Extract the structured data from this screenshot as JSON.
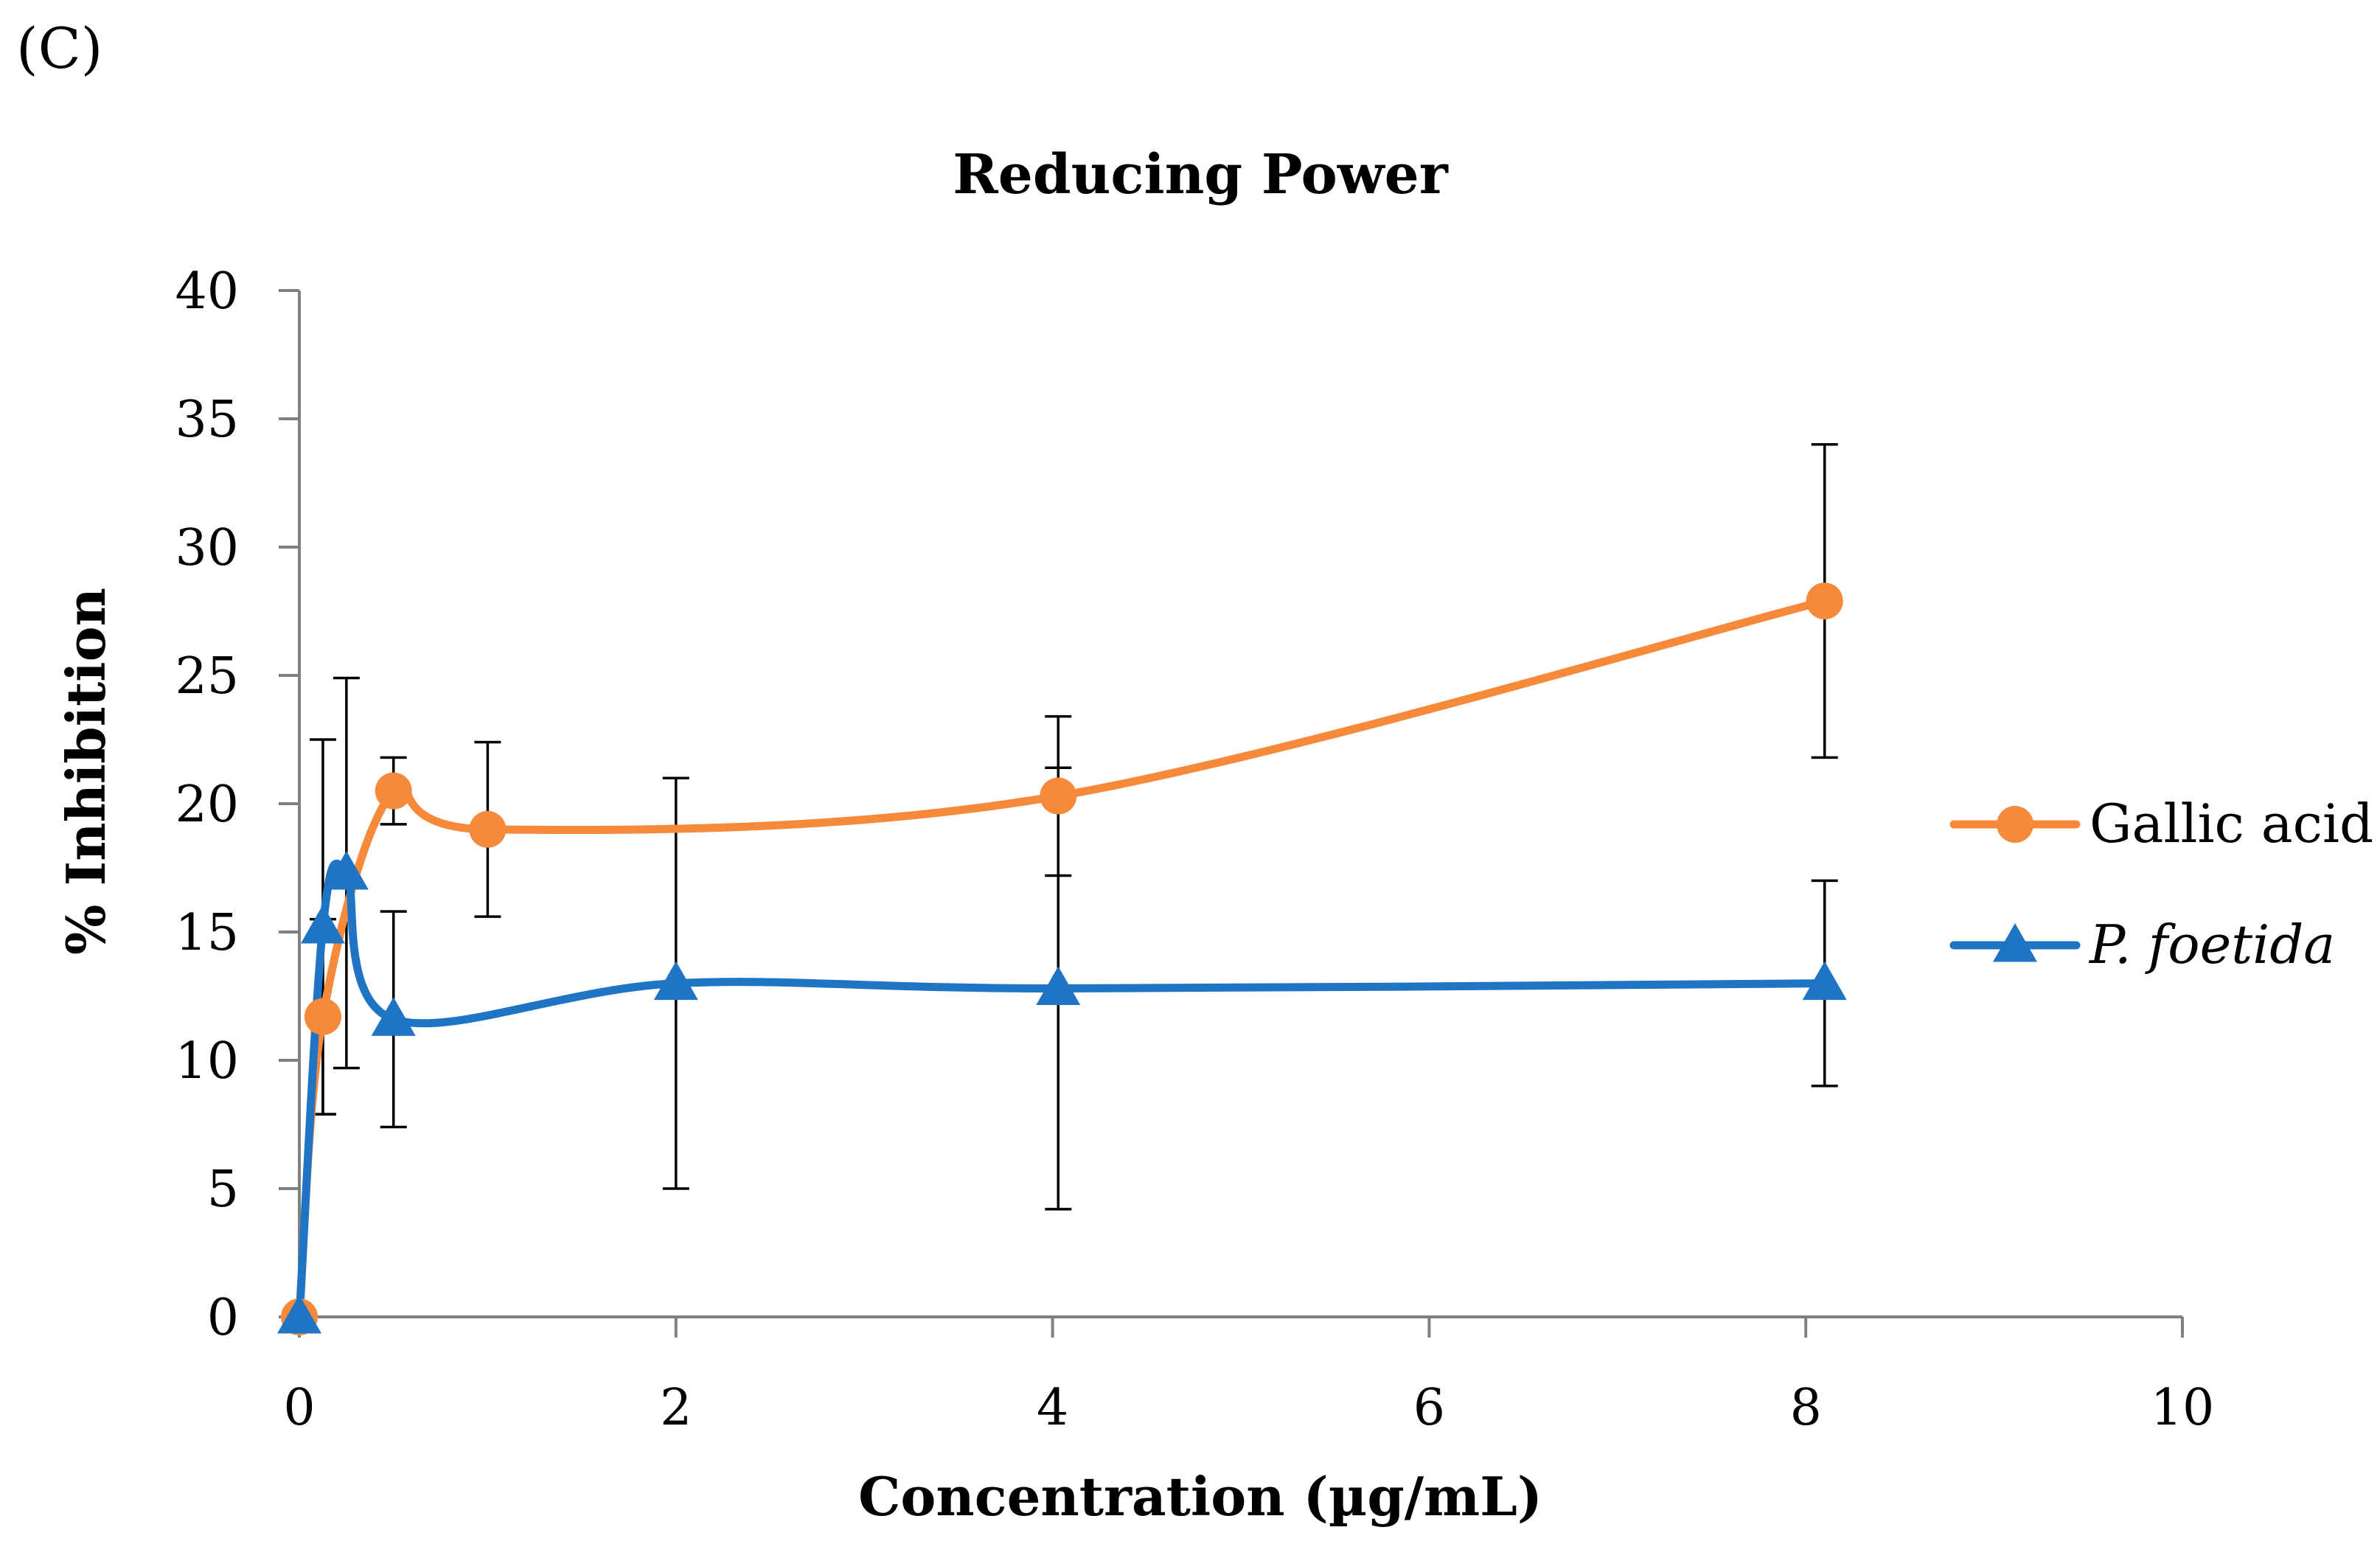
{
  "panel_label": "(C)",
  "chart_data": {
    "type": "line",
    "title": "Reducing Power",
    "xlabel": "Concentration (µg/mL)",
    "ylabel": "% Inhibition",
    "xlim": [
      0,
      10
    ],
    "ylim": [
      0,
      40
    ],
    "xticks": [
      0,
      2,
      4,
      6,
      8,
      10
    ],
    "yticks": [
      0,
      5,
      10,
      15,
      20,
      25,
      30,
      35,
      40
    ],
    "grid": false,
    "legend_position": "right",
    "series": [
      {
        "name": "Gallic acid",
        "italic": false,
        "color": "#F7893B",
        "marker": "circle",
        "x": [
          0,
          0.125,
          0.5,
          1,
          4.03,
          8.1
        ],
        "y": [
          0,
          11.7,
          20.5,
          19.0,
          20.3,
          27.9
        ],
        "err": [
          0,
          3.8,
          1.3,
          3.4,
          3.1,
          6.1
        ]
      },
      {
        "name": "P. foetida",
        "italic": true,
        "color": "#1F74C4",
        "marker": "triangle",
        "x": [
          0,
          0.125,
          0.25,
          0.5,
          2,
          4.03,
          8.1
        ],
        "y": [
          0,
          15.2,
          17.3,
          11.6,
          13.0,
          12.8,
          13.0
        ],
        "err": [
          0,
          7.3,
          7.6,
          4.2,
          8.0,
          8.6,
          4.0
        ]
      }
    ]
  }
}
